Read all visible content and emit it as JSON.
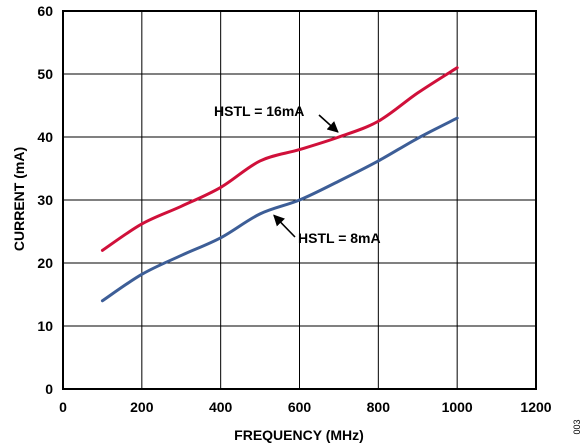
{
  "chart_data": {
    "type": "line",
    "xlabel": "FREQUENCY (MHz)",
    "ylabel": "CURRENT (mA)",
    "xlim": [
      0,
      1200
    ],
    "ylim": [
      0,
      60
    ],
    "x_ticks": [
      0,
      200,
      400,
      600,
      800,
      1000,
      1200
    ],
    "y_ticks": [
      0,
      10,
      20,
      30,
      40,
      50,
      60
    ],
    "grid": true,
    "legend": "none",
    "series": [
      {
        "color": "#d0103a",
        "x": [
          100,
          200,
          300,
          400,
          500,
          600,
          700,
          800,
          900,
          1000
        ],
        "y": [
          22,
          26.2,
          29,
          32,
          36.2,
          38,
          40,
          42.5,
          47,
          51
        ]
      },
      {
        "color": "#3d5e97",
        "x": [
          100,
          200,
          300,
          400,
          500,
          600,
          700,
          800,
          900,
          1000
        ],
        "y": [
          14,
          18.2,
          21.2,
          24,
          27.8,
          30,
          33,
          36.2,
          39.8,
          43
        ]
      }
    ],
    "annotations": [
      {
        "text": "HSTL = 16mA",
        "arrow_to": [
          705,
          40
        ]
      },
      {
        "text": "HSTL = 8mA",
        "arrow_to": [
          530,
          28.2
        ]
      }
    ],
    "figure_number": "003"
  }
}
